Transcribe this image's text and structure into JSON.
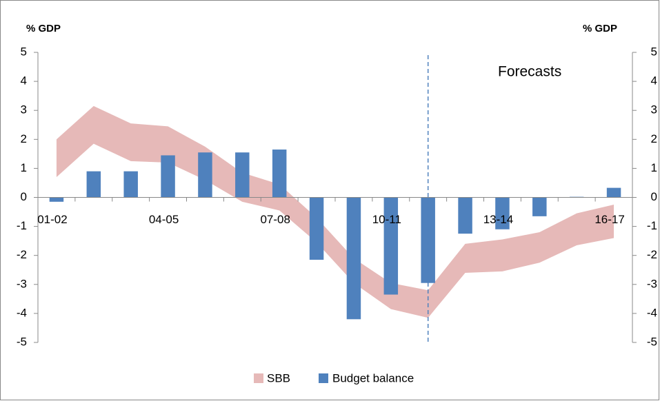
{
  "chart_data": {
    "type": "bar",
    "y_label": "% GDP",
    "y2_label": "% GDP",
    "annotation": "Forecasts",
    "categories": [
      "01-02",
      null,
      null,
      "04-05",
      null,
      null,
      "07-08",
      null,
      null,
      "10-11",
      null,
      null,
      "13-14",
      null,
      null,
      "16-17"
    ],
    "band": {
      "name": "SBB",
      "color": "#e6b9b8",
      "low": [
        0.7,
        1.85,
        1.25,
        1.2,
        0.6,
        -0.15,
        -0.45,
        -1.55,
        -2.95,
        -3.85,
        -4.15,
        -2.6,
        -2.55,
        -2.25,
        -1.65,
        -1.4
      ],
      "high": [
        2.0,
        3.15,
        2.55,
        2.45,
        1.75,
        0.85,
        0.45,
        -0.7,
        -2.1,
        -2.95,
        -3.2,
        -1.6,
        -1.45,
        -1.2,
        -0.55,
        -0.25
      ]
    },
    "series": [
      {
        "name": "Budget balance",
        "color": "#4f81bd",
        "values": [
          -0.15,
          0.9,
          0.9,
          1.45,
          1.55,
          1.55,
          1.65,
          -2.15,
          -4.2,
          -3.35,
          -2.95,
          -1.25,
          -1.1,
          -0.65,
          0.02,
          0.33
        ]
      }
    ],
    "ylim": [
      -5,
      5
    ],
    "yticks": [
      -5,
      -4,
      -3,
      -2,
      -1,
      0,
      1,
      2,
      3,
      4,
      5
    ],
    "y2lim": [
      -5,
      5
    ],
    "y2ticks": [
      -5,
      -4,
      -3,
      -2,
      -1,
      0,
      1,
      2,
      3,
      4,
      5
    ]
  }
}
